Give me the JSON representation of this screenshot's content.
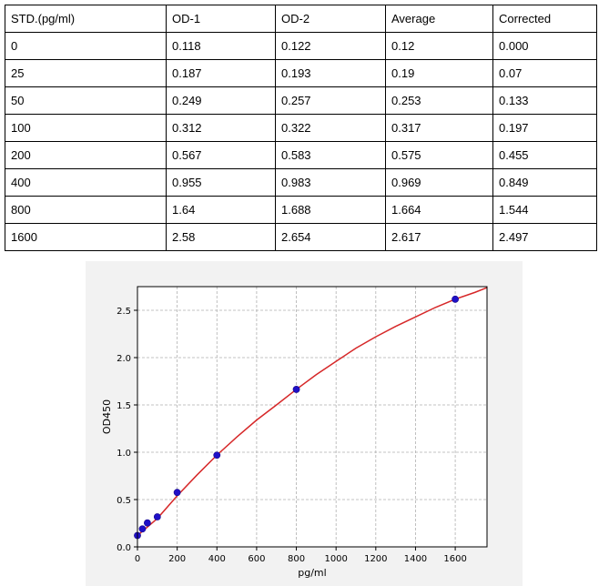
{
  "table": {
    "headers": [
      "STD.(pg/ml)",
      "OD-1",
      "OD-2",
      "Average",
      "Corrected"
    ],
    "rows": [
      [
        "0",
        "0.118",
        "0.122",
        "0.12",
        "0.000"
      ],
      [
        "25",
        "0.187",
        "0.193",
        "0.19",
        "0.07"
      ],
      [
        "50",
        "0.249",
        "0.257",
        "0.253",
        "0.133"
      ],
      [
        "100",
        "0.312",
        "0.322",
        "0.317",
        "0.197"
      ],
      [
        "200",
        "0.567",
        "0.583",
        "0.575",
        "0.455"
      ],
      [
        "400",
        "0.955",
        "0.983",
        "0.969",
        "0.849"
      ],
      [
        "800",
        "1.64",
        "1.688",
        "1.664",
        "1.544"
      ],
      [
        "1600",
        "2.58",
        "2.654",
        "2.617",
        "2.497"
      ]
    ]
  },
  "chart_data": {
    "type": "scatter",
    "title": "",
    "xlabel": "pg/ml",
    "ylabel": "OD450",
    "xlim": [
      0,
      1760
    ],
    "ylim": [
      0,
      2.75
    ],
    "x_ticks": [
      0,
      200,
      400,
      600,
      800,
      1000,
      1200,
      1400,
      1600
    ],
    "y_ticks": [
      0.0,
      0.5,
      1.0,
      1.5,
      2.0,
      2.5
    ],
    "x_tick_labels": [
      "0",
      "200",
      "400",
      "600",
      "800",
      "1000",
      "1200",
      "1400",
      "1600"
    ],
    "y_tick_labels": [
      "0.0",
      "0.5",
      "1.0",
      "1.5",
      "2.0",
      "2.5"
    ],
    "grid": true,
    "points": {
      "x": [
        0,
        25,
        50,
        100,
        200,
        400,
        800,
        1600
      ],
      "y": [
        0.12,
        0.19,
        0.253,
        0.317,
        0.575,
        0.969,
        1.664,
        2.617
      ],
      "color": "#1f10c8"
    },
    "fit_curve": {
      "color": "#d62728",
      "x": [
        0,
        50,
        100,
        200,
        300,
        400,
        500,
        600,
        700,
        800,
        900,
        1000,
        1100,
        1200,
        1300,
        1400,
        1500,
        1600,
        1700,
        1760
      ],
      "y": [
        0.12,
        0.21,
        0.3,
        0.54,
        0.76,
        0.97,
        1.16,
        1.34,
        1.5,
        1.664,
        1.82,
        1.96,
        2.1,
        2.22,
        2.33,
        2.43,
        2.53,
        2.617,
        2.69,
        2.74
      ]
    },
    "colors": {
      "background": "#f2f2f2",
      "grid": "#b0b0b0"
    }
  }
}
